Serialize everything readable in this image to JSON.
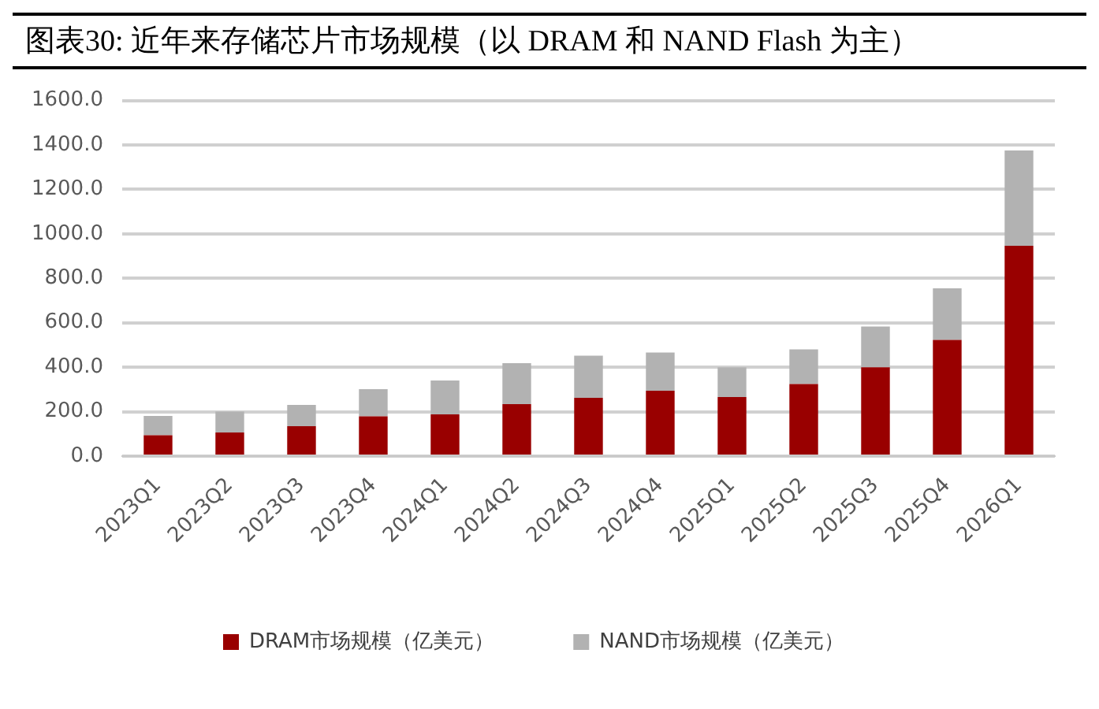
{
  "chart_data": {
    "type": "bar",
    "title": "图表30:  近年来存储芯片市场规模（以 DRAM 和 NAND Flash 为主）",
    "categories": [
      "2023Q1",
      "2023Q2",
      "2023Q3",
      "2023Q4",
      "2024Q1",
      "2024Q2",
      "2024Q3",
      "2024Q4",
      "2025Q1",
      "2025Q2",
      "2025Q3",
      "2025Q4",
      "2026Q1"
    ],
    "series": [
      {
        "name": "DRAM市场规模（亿美元）",
        "color": "#990000",
        "values": [
          94,
          106,
          135,
          179,
          188,
          234,
          262,
          294,
          266,
          324,
          400,
          523,
          946
        ]
      },
      {
        "name": "NAND市场规模（亿美元）",
        "color": "#b2b2b2",
        "values": [
          87,
          94,
          95,
          122,
          152,
          184,
          190,
          172,
          134,
          156,
          183,
          232,
          429
        ]
      }
    ],
    "stacked": true,
    "ylim": [
      0,
      1600
    ],
    "yticks": [
      {
        "value": 0,
        "label": "0.0"
      },
      {
        "value": 200,
        "label": "200.0"
      },
      {
        "value": 400,
        "label": "400.0"
      },
      {
        "value": 600,
        "label": "600.0"
      },
      {
        "value": 800,
        "label": "800.0"
      },
      {
        "value": 1000,
        "label": "1000.0"
      },
      {
        "value": 1200,
        "label": "1200.0"
      },
      {
        "value": 1400,
        "label": "1400.0"
      },
      {
        "value": 1600,
        "label": "1600.0"
      }
    ],
    "grid": "y",
    "legend": "bottom"
  }
}
